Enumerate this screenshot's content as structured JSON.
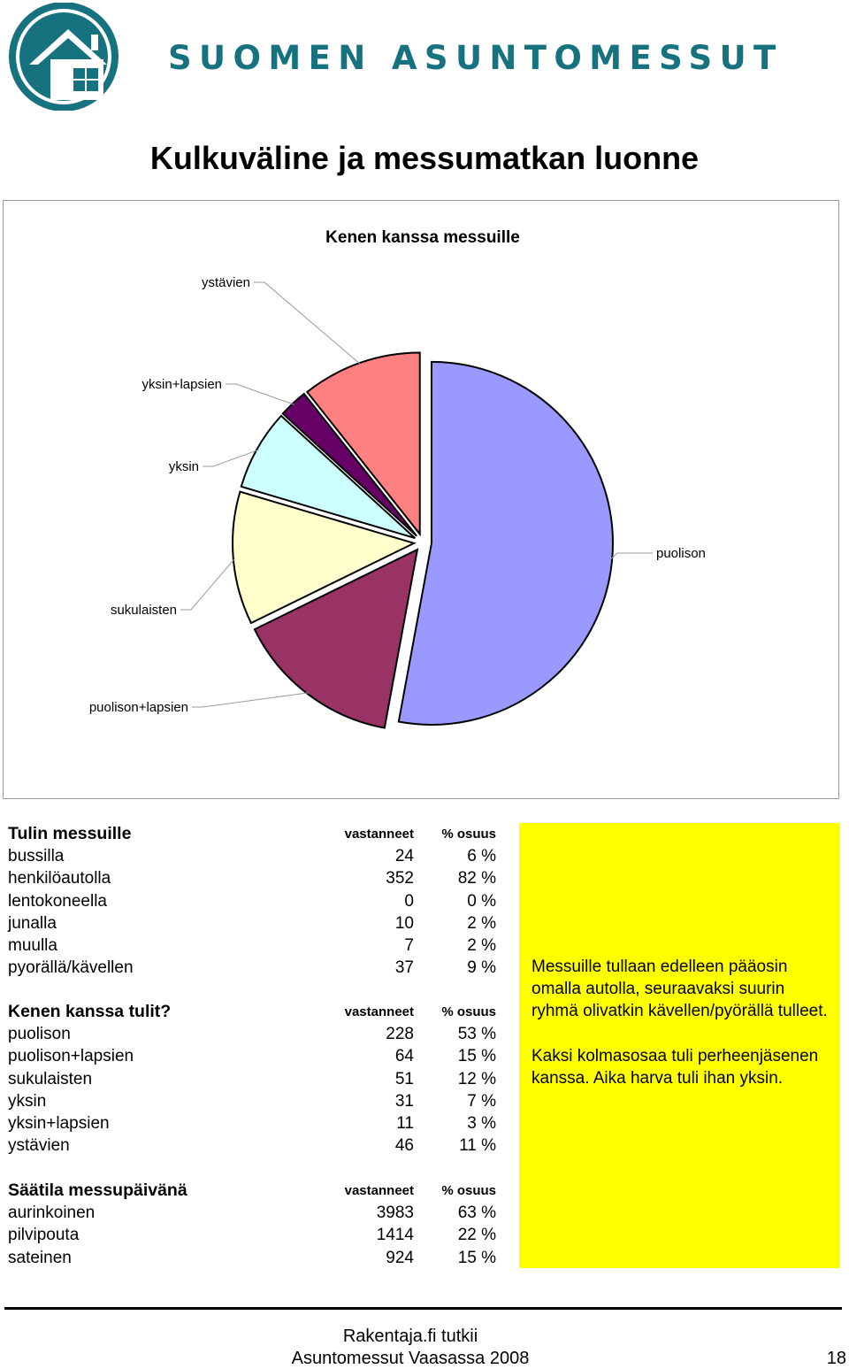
{
  "header": {
    "brand": "SUOMEN ASUNTOMESSUT",
    "page_title": "Kulkuväline ja messumatkan luonne",
    "colors": {
      "brand": "#17727f"
    }
  },
  "chart_data": {
    "type": "pie",
    "title": "Kenen kanssa messuille",
    "categories": [
      "puolison",
      "puolison+lapsien",
      "sukulaisten",
      "yksin",
      "yksin+lapsien",
      "ystävien"
    ],
    "values": [
      228,
      64,
      51,
      31,
      11,
      46
    ],
    "colors": [
      "#9999ff",
      "#993366",
      "#ffffcc",
      "#ccffff",
      "#660066",
      "#ff8080"
    ],
    "exploded": true,
    "legend": "none",
    "labels": "outside with leader lines"
  },
  "tables": [
    {
      "title": "Tulin messuille",
      "col_count": "vastanneet",
      "col_pct": "% osuus",
      "rows": [
        {
          "label": "bussilla",
          "count": "24",
          "pct": "6 %"
        },
        {
          "label": "henkilöautolla",
          "count": "352",
          "pct": "82 %"
        },
        {
          "label": "lentokoneella",
          "count": "0",
          "pct": "0 %"
        },
        {
          "label": "junalla",
          "count": "10",
          "pct": "2 %"
        },
        {
          "label": "muulla",
          "count": "7",
          "pct": "2 %"
        },
        {
          "label": "pyorällä/kävellen",
          "count": "37",
          "pct": "9 %"
        }
      ]
    },
    {
      "title": "Kenen kanssa tulit?",
      "col_count": "vastanneet",
      "col_pct": "% osuus",
      "rows": [
        {
          "label": "puolison",
          "count": "228",
          "pct": "53 %"
        },
        {
          "label": "puolison+lapsien",
          "count": "64",
          "pct": "15 %"
        },
        {
          "label": "sukulaisten",
          "count": "51",
          "pct": "12 %"
        },
        {
          "label": "yksin",
          "count": "31",
          "pct": "7 %"
        },
        {
          "label": "yksin+lapsien",
          "count": "11",
          "pct": "3 %"
        },
        {
          "label": "ystävien",
          "count": "46",
          "pct": "11 %"
        }
      ]
    },
    {
      "title": "Säätila messupäivänä",
      "col_count": "vastanneet",
      "col_pct": "% osuus",
      "rows": [
        {
          "label": "aurinkoinen",
          "count": "3983",
          "pct": "63 %"
        },
        {
          "label": "pilvipouta",
          "count": "1414",
          "pct": "22 %"
        },
        {
          "label": "sateinen",
          "count": "924",
          "pct": "15 %"
        }
      ]
    }
  ],
  "note": {
    "p1": "Messuille tullaan edelleen pääosin omalla autolla, seuraavaksi suurin ryhmä olivatkin kävellen/pyörällä tulleet.",
    "p2": "Kaksi kolmasosaa tuli perheenjäsenen kanssa. Aika harva tuli ihan yksin.",
    "background": "#ffff00"
  },
  "footer": {
    "line1": "Rakentaja.fi tutkii",
    "line2": "Asuntomessut Vaasassa 2008",
    "page": "18"
  }
}
